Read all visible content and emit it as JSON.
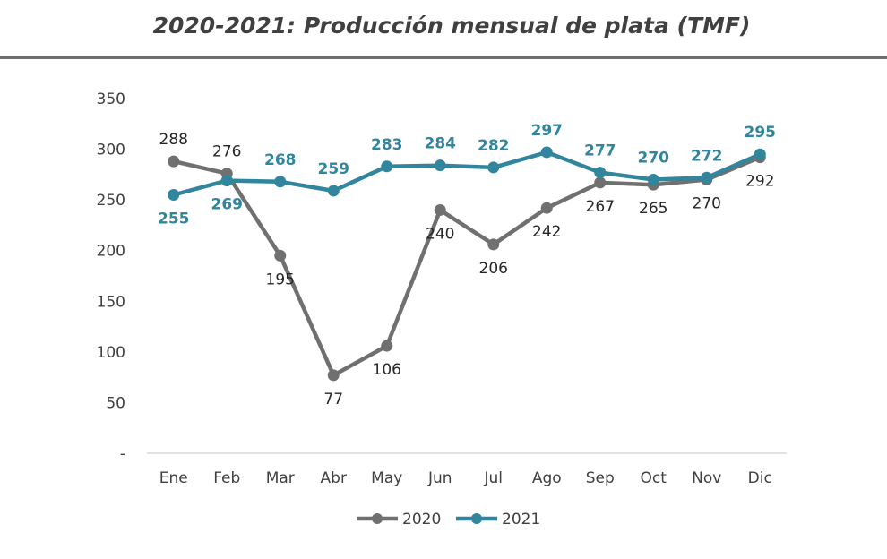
{
  "chart_data": {
    "type": "line",
    "title": "2020-2021: Producción mensual de plata (TMF)",
    "categories": [
      "Ene",
      "Feb",
      "Mar",
      "Abr",
      "May",
      "Jun",
      "Jul",
      "Ago",
      "Sep",
      "Oct",
      "Nov",
      "Dic"
    ],
    "y_tick_labels": [
      "-",
      "50",
      "100",
      "150",
      "200",
      "250",
      "300",
      "350"
    ],
    "ylim": [
      0,
      350
    ],
    "grid": false,
    "legend_position": "bottom",
    "series": [
      {
        "name": "2020",
        "color": "#707070",
        "label_color": "#262626",
        "values": [
          288,
          276,
          195,
          77,
          106,
          240,
          206,
          242,
          267,
          265,
          270,
          292
        ]
      },
      {
        "name": "2021",
        "color": "#31859c",
        "label_color": "#31859c",
        "values": [
          255,
          269,
          268,
          259,
          283,
          284,
          282,
          297,
          277,
          270,
          272,
          295
        ]
      }
    ]
  }
}
